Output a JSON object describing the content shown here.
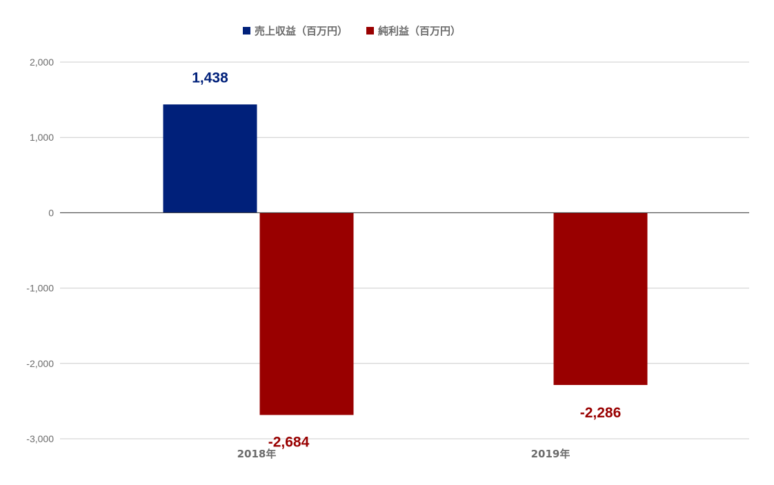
{
  "chart_data": {
    "type": "bar",
    "categories": [
      "2018年",
      "2019年"
    ],
    "series": [
      {
        "name": "売上収益（百万円）",
        "values": [
          1438,
          null
        ],
        "labels": [
          "1,438",
          ""
        ],
        "color": "#00207a"
      },
      {
        "name": "純利益（百万円）",
        "values": [
          -2684,
          -2286
        ],
        "labels": [
          "-2,684",
          "-2,286"
        ],
        "color": "#990000"
      }
    ],
    "ylim": [
      -3000,
      2000
    ],
    "yticks": [
      2000,
      1000,
      0,
      -1000,
      -2000,
      -3000
    ],
    "ytick_labels": [
      "2,000",
      "1,000",
      "0",
      "-1,000",
      "-2,000",
      "-3,000"
    ],
    "grid": true,
    "legend_position": "top-center"
  }
}
